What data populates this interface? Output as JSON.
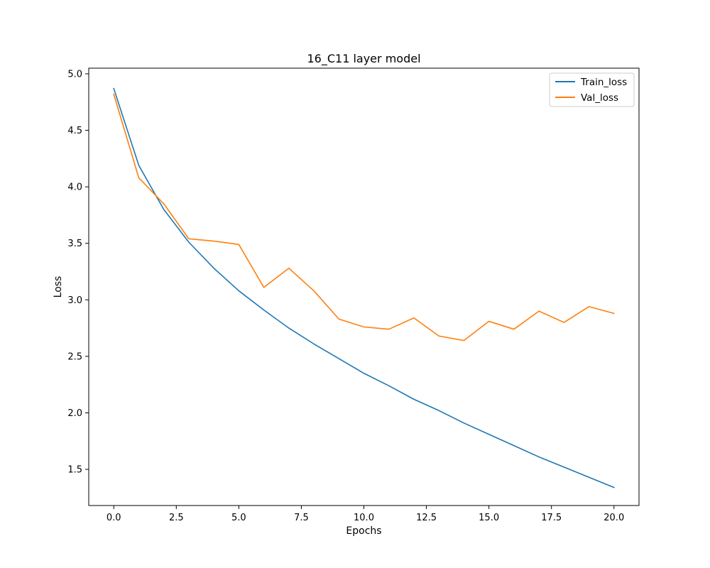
{
  "chart_data": {
    "type": "line",
    "title": "16_C11 layer model",
    "xlabel": "Epochs",
    "ylabel": "Loss",
    "xlim": [
      -1.0,
      21.0
    ],
    "ylim": [
      1.18,
      5.05
    ],
    "xticks": [
      0.0,
      2.5,
      5.0,
      7.5,
      10.0,
      12.5,
      15.0,
      17.5,
      20.0
    ],
    "xtick_labels": [
      "0.0",
      "2.5",
      "5.0",
      "7.5",
      "10.0",
      "12.5",
      "15.0",
      "17.5",
      "20.0"
    ],
    "yticks": [
      1.5,
      2.0,
      2.5,
      3.0,
      3.5,
      4.0,
      4.5,
      5.0
    ],
    "ytick_labels": [
      "1.5",
      "2.0",
      "2.5",
      "3.0",
      "3.5",
      "4.0",
      "4.5",
      "5.0"
    ],
    "grid": false,
    "legend_position": "top-right",
    "x": [
      0,
      1,
      2,
      3,
      4,
      5,
      6,
      7,
      8,
      9,
      10,
      11,
      12,
      13,
      14,
      15,
      16,
      17,
      18,
      19,
      20
    ],
    "series": [
      {
        "name": "Train_loss",
        "color": "#1f77b4",
        "values": [
          4.87,
          4.19,
          3.8,
          3.51,
          3.28,
          3.08,
          2.91,
          2.75,
          2.61,
          2.48,
          2.35,
          2.24,
          2.12,
          2.02,
          1.91,
          1.81,
          1.71,
          1.61,
          1.52,
          1.43,
          1.34
        ]
      },
      {
        "name": "Val_loss",
        "color": "#ff7f0e",
        "values": [
          4.82,
          4.08,
          3.85,
          3.54,
          3.52,
          3.49,
          3.11,
          3.28,
          3.08,
          2.83,
          2.76,
          2.74,
          2.84,
          2.68,
          2.64,
          2.81,
          2.74,
          2.9,
          2.8,
          2.94,
          2.88
        ]
      }
    ]
  }
}
